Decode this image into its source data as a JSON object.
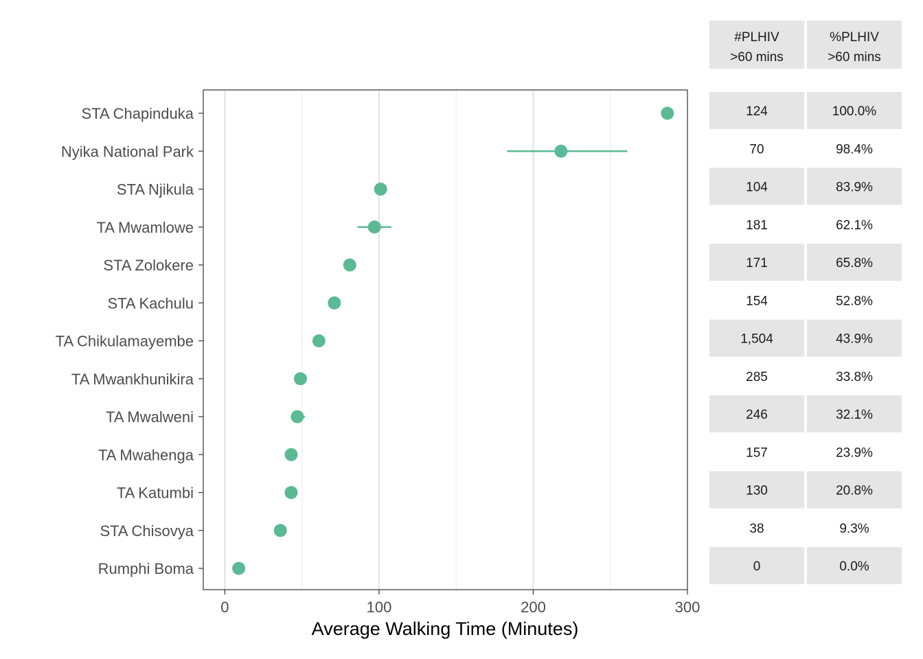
{
  "chart_data": {
    "type": "scatter",
    "xlabel": "Average Walking Time (Minutes)",
    "ylabel": "",
    "xlim": [
      -14,
      300
    ],
    "x_ticks": [
      0,
      100,
      200,
      300
    ],
    "x_minor_gridlines": [
      50,
      150,
      250
    ],
    "grid": true,
    "point_color": "#5bba94",
    "categories": [
      "STA Chapinduka",
      "Nyika National Park",
      "STA Njikula",
      "TA Mwamlowe",
      "STA Zolokere",
      "STA Kachulu",
      "TA Chikulamayembe",
      "TA Mwankhunikira",
      "TA Mwalweni",
      "TA Mwahenga",
      "TA Katumbi",
      "STA Chisovya",
      "Rumphi Boma"
    ],
    "values": [
      287,
      218,
      101,
      97,
      81,
      71,
      61,
      49,
      47,
      43,
      43,
      36,
      9
    ],
    "error_low": [
      287,
      183,
      101,
      86,
      81,
      71,
      61,
      49,
      45,
      43,
      43,
      36,
      9
    ],
    "error_high": [
      287,
      261,
      101,
      108,
      81,
      71,
      61,
      49,
      52,
      43,
      43,
      36,
      9
    ]
  },
  "table": {
    "headers": [
      {
        "line1": "#PLHIV",
        "line2": ">60 mins"
      },
      {
        "line1": "%PLHIV",
        "line2": ">60 mins"
      }
    ],
    "rows": [
      {
        "count": "124",
        "percent": "100.0%"
      },
      {
        "count": "70",
        "percent": "98.4%"
      },
      {
        "count": "104",
        "percent": "83.9%"
      },
      {
        "count": "181",
        "percent": "62.1%"
      },
      {
        "count": "171",
        "percent": "65.8%"
      },
      {
        "count": "154",
        "percent": "52.8%"
      },
      {
        "count": "1,504",
        "percent": "43.9%"
      },
      {
        "count": "285",
        "percent": "33.8%"
      },
      {
        "count": "246",
        "percent": "32.1%"
      },
      {
        "count": "157",
        "percent": "23.9%"
      },
      {
        "count": "130",
        "percent": "20.8%"
      },
      {
        "count": "38",
        "percent": "9.3%"
      },
      {
        "count": "0",
        "percent": "0.0%"
      }
    ]
  }
}
